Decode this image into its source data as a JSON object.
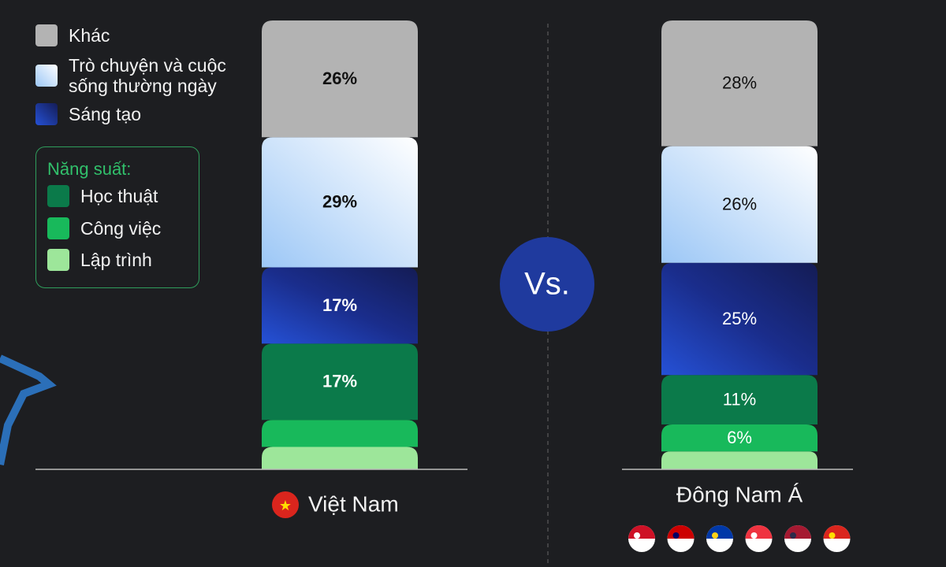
{
  "chart_data": {
    "type": "stacked-bar",
    "categories": [
      "Việt Nam",
      "Đông Nam Á"
    ],
    "ylim": [
      0,
      100
    ],
    "legend_group_title": "Năng suất:",
    "center_label": "Vs.",
    "series": [
      {
        "name": "Lập trình",
        "color": "#9de69a",
        "values": [
          5,
          4
        ],
        "value_labels": [
          null,
          null
        ]
      },
      {
        "name": "Công việc",
        "color": "#18b95b",
        "values": [
          6,
          6
        ],
        "value_labels": [
          null,
          "6%"
        ]
      },
      {
        "name": "Học thuật",
        "color": "#0b7a4a",
        "values": [
          17,
          11
        ],
        "value_labels": [
          "17%",
          "11%"
        ]
      },
      {
        "name": "Sáng tạo",
        "color": "#1b35a0",
        "values": [
          17,
          25
        ],
        "value_labels": [
          "17%",
          "25%"
        ]
      },
      {
        "name": "Trò chuyện và cuộc sống thường ngày",
        "color": "#b9d8fa",
        "values": [
          29,
          26
        ],
        "value_labels": [
          "29%",
          "26%"
        ]
      },
      {
        "name": "Khác",
        "color": "#b3b3b3",
        "values": [
          26,
          28
        ],
        "value_labels": [
          "26%",
          "28%"
        ]
      }
    ]
  }
}
